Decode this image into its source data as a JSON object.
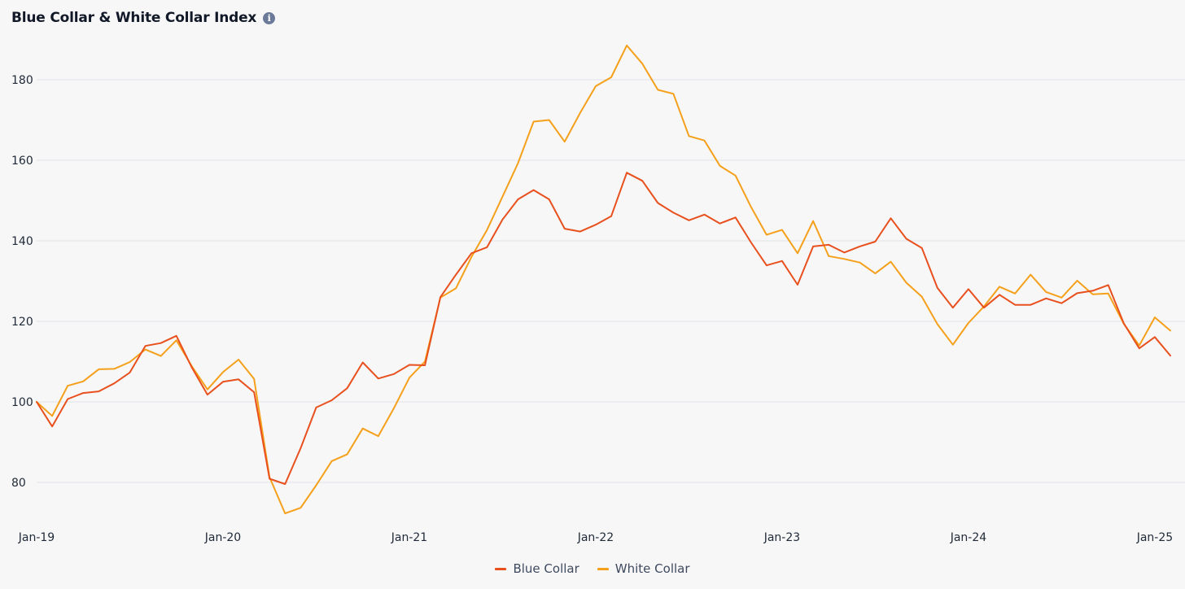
{
  "title": "Blue Collar & White Collar Index",
  "info_icon": "info-icon",
  "colors": {
    "blue_collar": "#e8501d",
    "white_collar": "#f5a01a",
    "grid": "#e1e3e8",
    "axis_text": "#1f2937"
  },
  "legend": [
    {
      "label": "Blue Collar",
      "color": "#e8501d"
    },
    {
      "label": "White Collar",
      "color": "#f5a01a"
    }
  ],
  "chart_data": {
    "type": "line",
    "title": "Blue Collar & White Collar Index",
    "xlabel": "",
    "ylabel": "",
    "x_start": "Jan-19",
    "x_end": "Jan-25",
    "x_ticks": [
      "Jan-19",
      "Jan-20",
      "Jan-21",
      "Jan-22",
      "Jan-23",
      "Jan-24",
      "Jan-25"
    ],
    "y_ticks": [
      80,
      100,
      120,
      140,
      160,
      180
    ],
    "ylim": [
      70,
      192
    ],
    "grid": "horizontal",
    "legend_position": "bottom-center",
    "series": [
      {
        "name": "Blue Collar",
        "color": "#e8501d",
        "values": [
          100,
          93.9,
          100.7,
          102.2,
          102.6,
          104.6,
          107.3,
          113.9,
          114.6,
          116.4,
          108.5,
          101.8,
          105,
          105.6,
          102.4,
          80.9,
          79.6,
          88.5,
          98.6,
          100.4,
          103.4,
          109.8,
          105.8,
          106.9,
          109.2,
          109.1,
          126,
          131.6,
          136.9,
          138.4,
          145.3,
          150.3,
          152.6,
          150.3,
          143,
          142.3,
          144,
          146.1,
          156.9,
          154.9,
          149.4,
          147,
          145.1,
          146.5,
          144.3,
          145.8,
          139.6,
          133.9,
          135,
          129.1,
          138.6,
          139,
          137.1,
          138.6,
          139.8,
          145.6,
          140.5,
          138.2,
          128.3,
          123.4,
          128,
          123.4,
          126.6,
          124.1,
          124.1,
          125.7,
          124.5,
          127,
          127.6,
          129,
          119.5,
          113.3,
          116.1,
          111.5
        ]
      },
      {
        "name": "White Collar",
        "color": "#f5a01a",
        "values": [
          100,
          96.5,
          104,
          105.1,
          108.1,
          108.2,
          109.9,
          113,
          111.4,
          115.3,
          108.8,
          103.1,
          107.4,
          110.5,
          105.7,
          81.3,
          72.3,
          73.7,
          79.3,
          85.3,
          87,
          93.4,
          91.5,
          98.4,
          106,
          110,
          125.9,
          128.2,
          136,
          142.7,
          151,
          159.3,
          169.6,
          170,
          164.6,
          171.8,
          178.4,
          180.6,
          188.5,
          184,
          177.5,
          176.5,
          166,
          164.9,
          158.6,
          156.2,
          148.4,
          141.5,
          142.7,
          136.9,
          144.9,
          136.2,
          135.5,
          134.6,
          131.9,
          134.8,
          129.6,
          126.1,
          119.3,
          114.2,
          119.6,
          123.7,
          128.6,
          126.9,
          131.6,
          127.3,
          125.9,
          130.1,
          126.7,
          126.9,
          119.4,
          114,
          121,
          117.7
        ]
      }
    ]
  }
}
